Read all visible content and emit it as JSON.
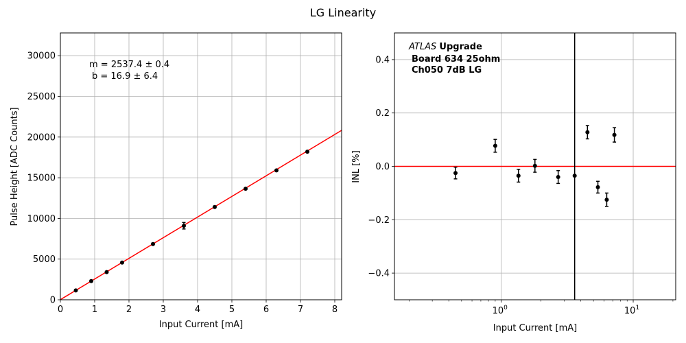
{
  "figure": {
    "title": "LG Linearity"
  },
  "colors": {
    "fit_line": "#ff0000",
    "zero_line": "#ff0000",
    "points": "#000000",
    "grid": "#b0b0b0",
    "vline": "#000000"
  },
  "chart_data": [
    {
      "type": "scatter",
      "xlabel": "Input Current [mA]",
      "ylabel": "Pulse Height [ADC Counts]",
      "xlim": [
        0,
        8.2
      ],
      "ylim": [
        0,
        32800
      ],
      "xticks": [
        0,
        1,
        2,
        3,
        4,
        5,
        6,
        7,
        8
      ],
      "yticks": [
        0,
        5000,
        10000,
        15000,
        20000,
        25000,
        30000
      ],
      "grid": true,
      "fit_text": {
        "line1": "m = 2537.4 ± 0.4",
        "line2": "b = 16.9 ± 6.4"
      },
      "fit": {
        "slope": 2537.4,
        "intercept": 16.9
      },
      "series": [
        {
          "x": [
            0.45,
            0.9,
            1.35,
            1.8,
            2.7,
            3.6,
            4.5,
            5.4,
            6.3,
            7.2
          ],
          "y": [
            1150,
            2300,
            3400,
            4570,
            6850,
            9100,
            11400,
            13650,
            15900,
            18200
          ],
          "yerr": [
            60,
            60,
            60,
            60,
            60,
            400,
            60,
            60,
            60,
            60
          ]
        }
      ]
    },
    {
      "type": "scatter",
      "xlabel": "Input Current [mA]",
      "ylabel": "INL [%]",
      "xscale": "log",
      "xlim": [
        0.155,
        21
      ],
      "ylim": [
        -0.5,
        0.5
      ],
      "xticks": [
        {
          "value": 1,
          "base": "10",
          "exp": "0"
        },
        {
          "value": 10,
          "base": "10",
          "exp": "1"
        }
      ],
      "yticks": [
        -0.4,
        -0.2,
        0.0,
        0.2,
        0.4
      ],
      "ytick_labels": [
        "−0.4",
        "−0.2",
        "0.0",
        "0.2",
        "0.4"
      ],
      "grid": true,
      "legend_text": {
        "experiment": "ATLAS",
        "upgrade": "Upgrade",
        "board": "Board 634 25ohm",
        "channel": "Ch050 7dB LG"
      },
      "reference_lines": {
        "horizontal_y": 0.0,
        "vertical_x": 3.6
      },
      "series": [
        {
          "x": [
            0.45,
            0.9,
            1.35,
            1.8,
            2.7,
            3.6,
            4.5,
            5.4,
            6.3,
            7.2
          ],
          "y": [
            -0.025,
            0.077,
            -0.035,
            0.002,
            -0.04,
            -0.035,
            0.128,
            -0.078,
            -0.125,
            0.118
          ],
          "yerr": [
            0.022,
            0.024,
            0.024,
            0.024,
            0.024,
            0.0,
            0.025,
            0.022,
            0.025,
            0.027
          ]
        }
      ]
    }
  ]
}
